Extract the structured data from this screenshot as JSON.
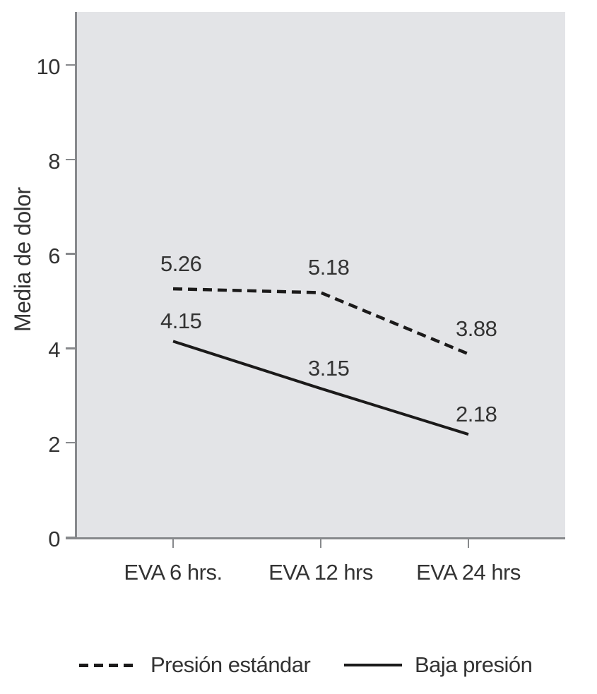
{
  "chart_data": {
    "type": "line",
    "title": "",
    "xlabel": "",
    "ylabel": "Media de dolor",
    "categories": [
      "EVA 6 hrs.",
      "EVA 12 hrs",
      "EVA 24 hrs"
    ],
    "series": [
      {
        "name": "Presión estándar",
        "style": "dashed",
        "values": [
          5.26,
          5.18,
          3.88
        ]
      },
      {
        "name": "Baja presión",
        "style": "solid",
        "values": [
          4.15,
          3.15,
          2.18
        ]
      }
    ],
    "data_labels": [
      [
        "5.26",
        "5.18",
        "3.88"
      ],
      [
        "4.15",
        "3.15",
        "2.18"
      ]
    ],
    "y_ticks": [
      "0",
      "2",
      "4",
      "6",
      "8",
      "10"
    ],
    "y_tick_values": [
      0,
      2,
      4,
      6,
      8,
      10
    ],
    "ylim": [
      0,
      11.1
    ],
    "grid": false,
    "legend_position": "bottom",
    "colors": {
      "series_line": "#1b1a1a",
      "plot_background": "#e3e4e7",
      "axis": "#87898c",
      "text": "#333333"
    }
  }
}
